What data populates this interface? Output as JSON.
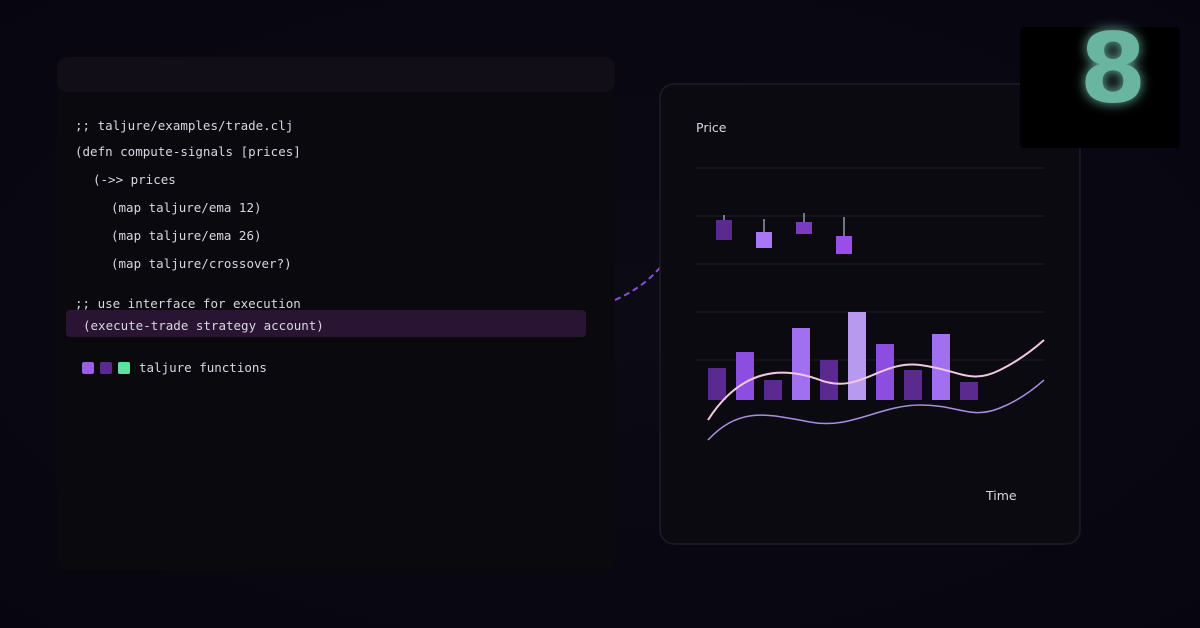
{
  "code": {
    "lines": [
      ";; taljure/examples/trade.clj",
      "(defn compute-signals [prices]",
      "(->> prices",
      "(map taljure/ema 12)",
      "(map taljure/ema 26)",
      "(map taljure/crossover?)",
      ";; use interface for execution"
    ],
    "highlight": "(execute-trade strategy account)",
    "legend": "taljure functions"
  },
  "chart": {
    "y_label": "Price",
    "x_label": "Time"
  },
  "badge": "8"
}
